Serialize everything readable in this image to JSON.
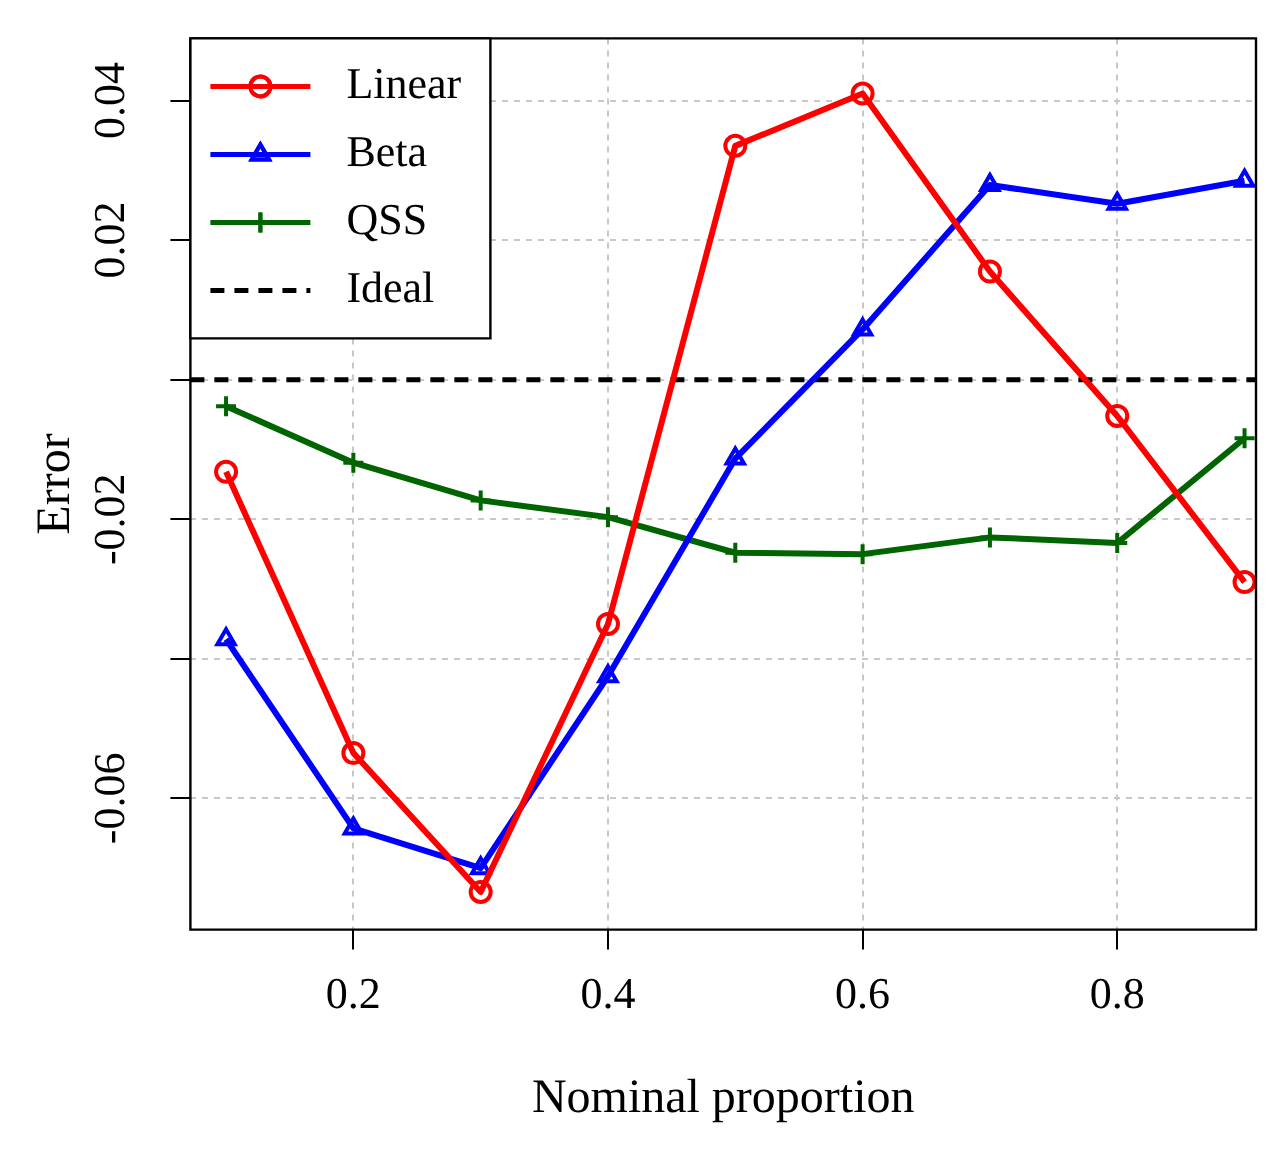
{
  "chart_data": {
    "type": "line",
    "xlabel": "Nominal proportion",
    "ylabel": "Error",
    "x": [
      0.1,
      0.2,
      0.3,
      0.4,
      0.5,
      0.6,
      0.7,
      0.8,
      0.9
    ],
    "series": [
      {
        "name": "Linear",
        "color": "#ff0000",
        "marker": "circle",
        "values": [
          -0.0132,
          -0.0535,
          -0.0734,
          -0.035,
          0.0335,
          0.041,
          0.0155,
          -0.0052,
          -0.029
        ]
      },
      {
        "name": "Beta",
        "color": "#0000ff",
        "marker": "triangle",
        "values": [
          -0.0372,
          -0.0643,
          -0.07,
          -0.0425,
          -0.0113,
          0.0072,
          0.0279,
          0.0252,
          0.0285
        ]
      },
      {
        "name": "QSS",
        "color": "#006400",
        "marker": "cross",
        "values": [
          -0.0038,
          -0.0119,
          -0.0173,
          -0.0197,
          -0.0248,
          -0.025,
          -0.0226,
          -0.0234,
          -0.0084
        ]
      }
    ],
    "ref_lines": [
      {
        "axis": "y",
        "value": 0,
        "label": "Ideal",
        "color": "#000000",
        "line_style": "dashed"
      }
    ],
    "xlim": [
      0.072,
      0.909
    ],
    "ylim": [
      -0.0788,
      0.0489
    ],
    "xticks": [
      0.2,
      0.4,
      0.6,
      0.8
    ],
    "yticks": [
      -0.06,
      {
        "value": -0.04,
        "label": null
      },
      -0.02,
      {
        "value": 0,
        "label": null
      },
      0.02,
      0.04
    ],
    "grid": true,
    "legend": "top left"
  }
}
